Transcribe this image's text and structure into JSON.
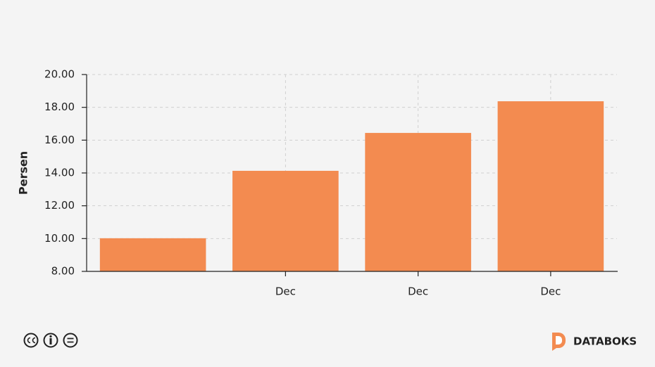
{
  "chart_data": {
    "type": "bar",
    "y_label": "Persen",
    "categories": [
      null,
      "Dec",
      "Dec",
      "Dec"
    ],
    "values": [
      10.02,
      14.13,
      16.44,
      18.37
    ],
    "color": "#f38b50",
    "ylim": [
      8,
      20
    ],
    "yticks": [
      {
        "value": 8,
        "label": "8.00"
      },
      {
        "value": 10,
        "label": "10.00"
      },
      {
        "value": 12,
        "label": "12.00"
      },
      {
        "value": 14,
        "label": "14.00"
      },
      {
        "value": 16,
        "label": "16.00"
      },
      {
        "value": 18,
        "label": "18.00"
      },
      {
        "value": 20,
        "label": "20.00"
      }
    ],
    "grid": true
  },
  "footer": {
    "brand": "DATABOKS"
  }
}
